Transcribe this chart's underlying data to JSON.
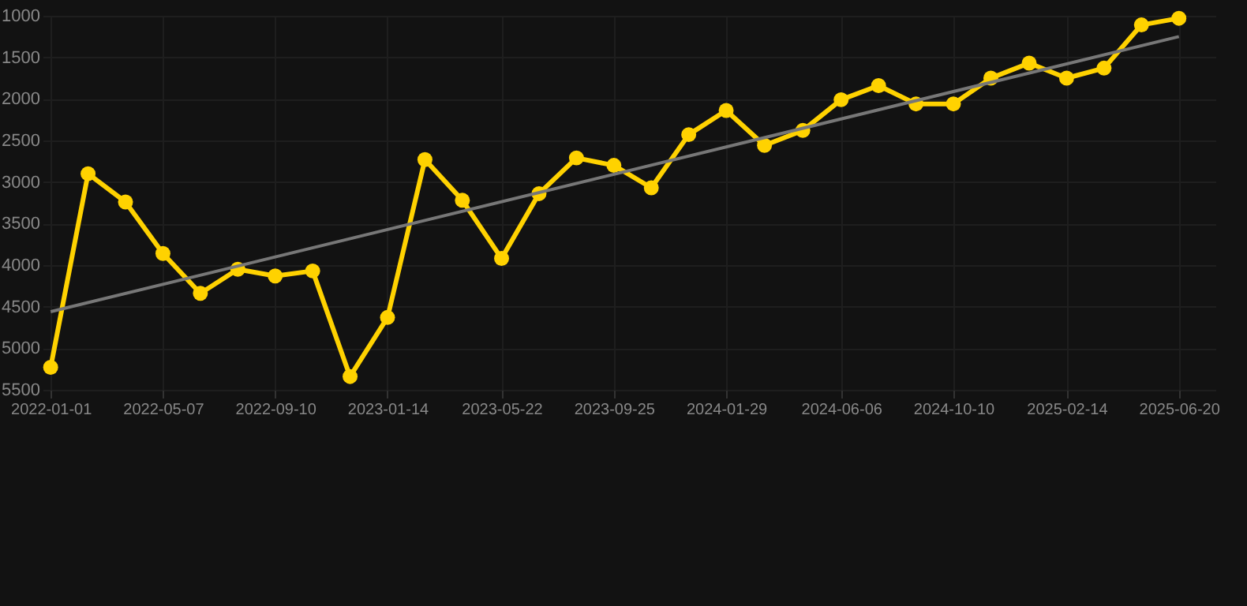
{
  "chart_data": {
    "type": "line",
    "x": [
      "2022-01-01",
      "2022-02-12",
      "2022-03-26",
      "2022-05-07",
      "2022-06-18",
      "2022-07-30",
      "2022-09-10",
      "2022-10-22",
      "2022-12-03",
      "2023-01-14",
      "2023-02-25",
      "2023-04-08",
      "2023-05-22",
      "2023-07-03",
      "2023-08-14",
      "2023-09-25",
      "2023-11-06",
      "2023-12-18",
      "2024-01-29",
      "2024-03-12",
      "2024-04-24",
      "2024-06-06",
      "2024-07-18",
      "2024-08-29",
      "2024-10-10",
      "2024-11-21",
      "2025-01-03",
      "2025-02-14",
      "2025-03-28",
      "2025-05-09",
      "2025-06-20"
    ],
    "series": [
      {
        "color": "#ffd200",
        "marker": "circle",
        "values": [
          5230,
          2900,
          3240,
          3860,
          4340,
          4050,
          4130,
          4070,
          5340,
          4630,
          2730,
          3220,
          3920,
          3140,
          2710,
          2800,
          3070,
          2430,
          2140,
          2560,
          2380,
          2010,
          1840,
          2060,
          2060,
          1750,
          1570,
          1750,
          1630,
          1110,
          1030
        ]
      },
      {
        "type": "line",
        "color": "#777777",
        "marker": "none",
        "x": [
          "2022-01-01",
          "2025-06-20"
        ],
        "values": [
          4560,
          1250
        ]
      }
    ],
    "xlim": [
      "2021-12-23",
      "2025-07-31"
    ],
    "ylim": [
      5500,
      1000
    ],
    "xticks": [
      "2022-01-01",
      "2022-05-07",
      "2022-09-10",
      "2023-01-14",
      "2023-05-22",
      "2023-09-25",
      "2024-01-29",
      "2024-06-06",
      "2024-10-10",
      "2025-02-14",
      "2025-06-20"
    ],
    "yticks": [
      1000,
      1500,
      2000,
      2500,
      3000,
      3500,
      4000,
      4500,
      5000,
      5500
    ],
    "grid": true
  }
}
